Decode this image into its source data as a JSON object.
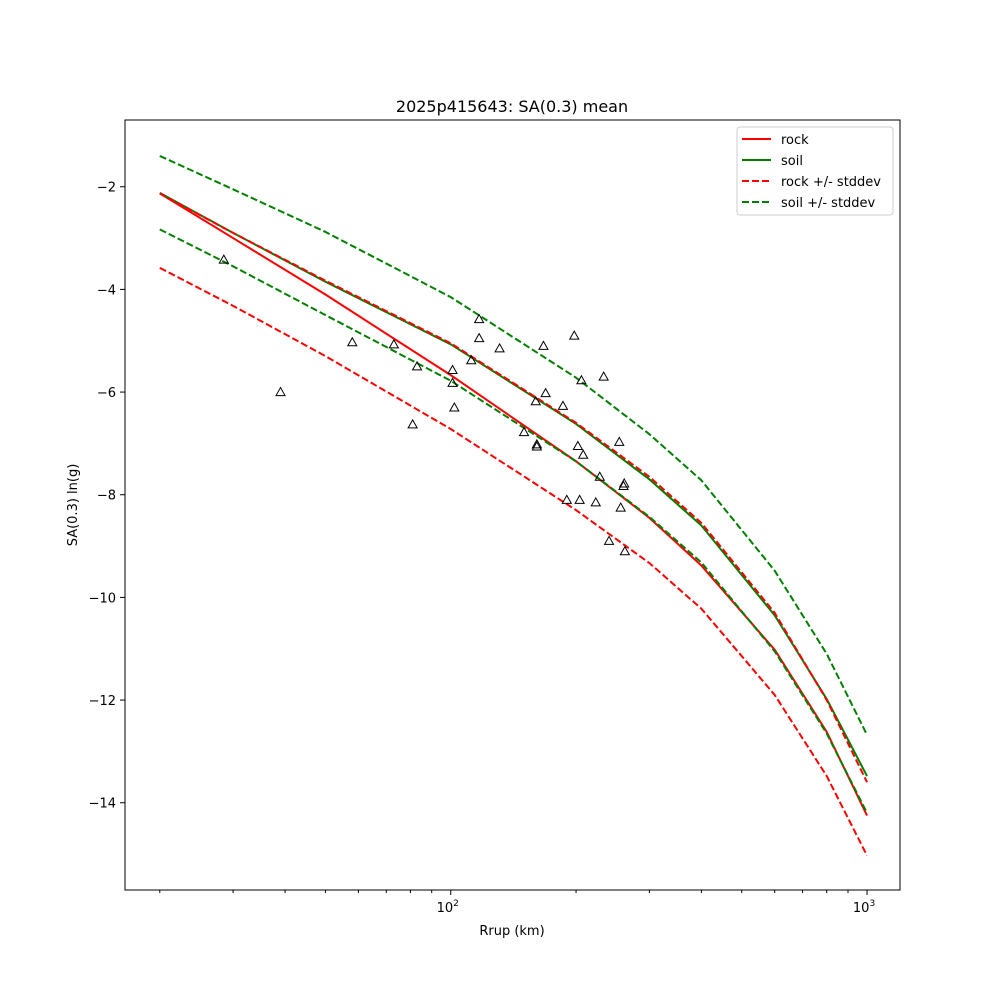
{
  "chart_data": {
    "type": "line",
    "title": "2025p415643: SA(0.3) mean",
    "xlabel": "Rrup (km)",
    "ylabel": "SA(0.3) ln(g)",
    "xscale": "log",
    "xlim": [
      16.5,
      1200
    ],
    "ylim": [
      -15.7,
      -0.7
    ],
    "x_ticks": [
      {
        "value": 100,
        "base": "10",
        "exp": "2"
      },
      {
        "value": 1000,
        "base": "10",
        "exp": "3"
      }
    ],
    "y_ticks": [
      {
        "value": -2,
        "label": "−2"
      },
      {
        "value": -4,
        "label": "−4"
      },
      {
        "value": -6,
        "label": "−6"
      },
      {
        "value": -8,
        "label": "−8"
      },
      {
        "value": -10,
        "label": "−10"
      },
      {
        "value": -12,
        "label": "−12"
      },
      {
        "value": -14,
        "label": "−14"
      }
    ],
    "grid": false,
    "legend_position": "top-right",
    "legend": [
      {
        "label": "rock",
        "color": "#ff0000",
        "style": "solid"
      },
      {
        "label": "soil",
        "color": "#008000",
        "style": "solid"
      },
      {
        "label": "rock +/- stddev",
        "color": "#ff0000",
        "style": "dashed"
      },
      {
        "label": "soil +/- stddev",
        "color": "#008000",
        "style": "dashed"
      }
    ],
    "series": [
      {
        "name": "rock",
        "color": "#ff0000",
        "style": "solid",
        "x": [
          20,
          30,
          50,
          100,
          200,
          300,
          400,
          600,
          800,
          1000
        ],
        "y": [
          -2.13,
          -3.0,
          -4.1,
          -5.67,
          -7.35,
          -8.45,
          -9.38,
          -11.02,
          -12.62,
          -14.25
        ]
      },
      {
        "name": "soil",
        "color": "#008000",
        "style": "solid",
        "x": [
          20,
          30,
          50,
          100,
          200,
          300,
          400,
          600,
          800,
          1000
        ],
        "y": [
          -2.12,
          -2.9,
          -3.85,
          -5.07,
          -6.62,
          -7.7,
          -8.6,
          -10.35,
          -11.98,
          -13.48
        ]
      },
      {
        "name": "rock +/- stddev",
        "color": "#ff0000",
        "style": "dashed",
        "x": [
          20,
          30,
          50,
          100,
          200,
          300,
          400,
          600,
          800,
          1000
        ],
        "y": [
          -2.13,
          -2.9,
          -3.83,
          -5.05,
          -6.6,
          -7.65,
          -8.55,
          -10.3,
          -12.0,
          -13.6
        ]
      },
      {
        "name": "rock +/- stddev",
        "color": "#ff0000",
        "style": "dashed",
        "x": [
          20,
          30,
          50,
          100,
          200,
          300,
          400,
          600,
          800,
          1000
        ],
        "y": [
          -3.58,
          -4.32,
          -5.3,
          -6.72,
          -8.3,
          -9.33,
          -10.22,
          -11.9,
          -13.48,
          -15.03
        ]
      },
      {
        "name": "soil +/- stddev",
        "color": "#008000",
        "style": "dashed",
        "x": [
          20,
          30,
          50,
          100,
          200,
          300,
          400,
          600,
          800,
          1000
        ],
        "y": [
          -1.4,
          -2.05,
          -2.88,
          -4.15,
          -5.72,
          -6.82,
          -7.72,
          -9.48,
          -11.1,
          -12.68
        ]
      },
      {
        "name": "soil +/- stddev",
        "color": "#008000",
        "style": "dashed",
        "x": [
          20,
          30,
          50,
          100,
          200,
          300,
          400,
          600,
          800,
          1000
        ],
        "y": [
          -2.83,
          -3.55,
          -4.5,
          -5.78,
          -7.35,
          -8.43,
          -9.32,
          -11.05,
          -12.65,
          -14.2
        ]
      }
    ],
    "observations": {
      "marker": "triangle",
      "color": "#000000",
      "points": [
        [
          28.5,
          -3.42
        ],
        [
          39,
          -6.0
        ],
        [
          58,
          -5.03
        ],
        [
          73,
          -5.07
        ],
        [
          81,
          -6.63
        ],
        [
          83,
          -5.5
        ],
        [
          101,
          -5.57
        ],
        [
          101,
          -5.82
        ],
        [
          102,
          -6.3
        ],
        [
          112,
          -5.38
        ],
        [
          117,
          -4.58
        ],
        [
          117,
          -4.95
        ],
        [
          131,
          -5.15
        ],
        [
          150,
          -6.78
        ],
        [
          160,
          -6.18
        ],
        [
          161,
          -7.02
        ],
        [
          161,
          -7.06
        ],
        [
          167,
          -5.1
        ],
        [
          169,
          -6.02
        ],
        [
          186,
          -6.27
        ],
        [
          190,
          -8.1
        ],
        [
          198,
          -4.9
        ],
        [
          202,
          -7.05
        ],
        [
          204,
          -8.1
        ],
        [
          206,
          -5.77
        ],
        [
          208,
          -7.22
        ],
        [
          223,
          -8.15
        ],
        [
          228,
          -7.65
        ],
        [
          233,
          -5.7
        ],
        [
          240,
          -8.9
        ],
        [
          254,
          -6.97
        ],
        [
          256,
          -8.25
        ],
        [
          260,
          -7.83
        ],
        [
          261,
          -7.78
        ],
        [
          262,
          -9.1
        ]
      ]
    }
  }
}
